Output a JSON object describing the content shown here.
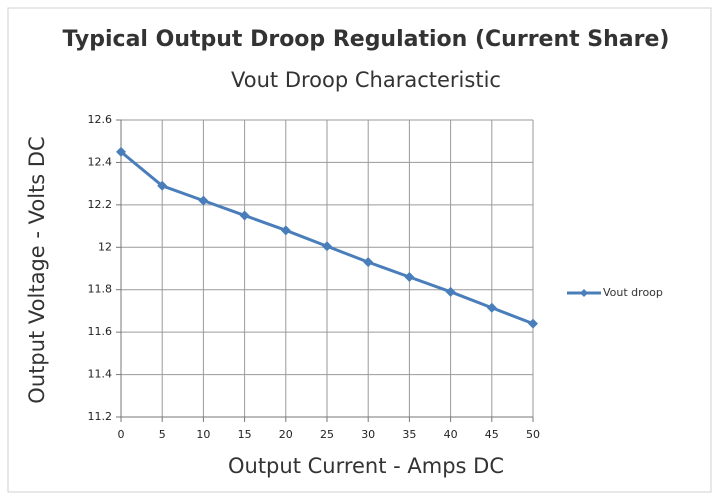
{
  "chart_data": {
    "type": "line",
    "title": "Typical Output Droop Regulation (Current Share)",
    "subtitle": "Vout Droop Characteristic",
    "x_label": "Output Current - Amps DC",
    "y_label": "Output Voltage - Volts DC",
    "x": [
      0,
      5,
      10,
      15,
      20,
      25,
      30,
      35,
      40,
      45,
      50
    ],
    "series": [
      {
        "name": "Vout droop",
        "color": "#4a7ebb",
        "values": [
          12.45,
          12.29,
          12.22,
          12.15,
          12.08,
          12.005,
          11.93,
          11.86,
          11.79,
          11.715,
          11.64
        ]
      }
    ],
    "xlim": [
      0,
      50
    ],
    "xticks": [
      0,
      5,
      10,
      15,
      20,
      25,
      30,
      35,
      40,
      45,
      50
    ],
    "ylim": [
      11.2,
      12.6
    ],
    "yticks": [
      11.2,
      11.4,
      11.6,
      11.8,
      12,
      12.2,
      12.4,
      12.6
    ],
    "grid": true,
    "legend": "right"
  }
}
